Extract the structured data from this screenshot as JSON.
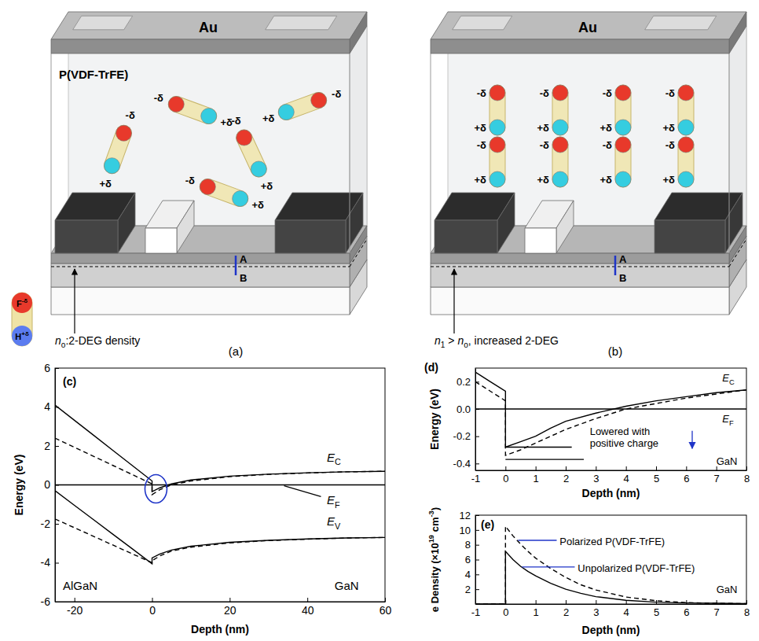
{
  "diagrams": [
    {
      "panel_label": "(a)",
      "top_electrode": "Au",
      "ferroelectric": "P(VDF-TrFE)",
      "probe_labels": [
        "A",
        "B"
      ],
      "channel_label": [
        {
          "text": "n",
          "format": "italic"
        },
        {
          "text": "o",
          "format": "sub"
        },
        {
          "text": ":2-DEG density"
        }
      ],
      "molecules": [
        {
          "labels": [
            "-δ",
            "+δ"
          ]
        },
        {
          "labels": [
            "-δ",
            "+δ"
          ]
        },
        {
          "labels": [
            "-δ",
            "+δ"
          ]
        },
        {
          "labels": [
            "-δ",
            "+δ"
          ]
        },
        {
          "labels": [
            "-δ",
            "+δ"
          ]
        }
      ],
      "legend_molecule": {
        "negative": [
          {
            "text": "F"
          },
          {
            "text": "-δ",
            "format": "sup"
          }
        ],
        "positive": [
          {
            "text": "H"
          },
          {
            "text": "+δ",
            "format": "sup"
          }
        ]
      }
    },
    {
      "panel_label": "(b)",
      "top_electrode": "Au",
      "probe_labels": [
        "A",
        "B"
      ],
      "channel_label": [
        {
          "text": "n",
          "format": "italic"
        },
        {
          "text": "1",
          "format": "sub"
        },
        {
          "text": " > "
        },
        {
          "text": "n",
          "format": "italic"
        },
        {
          "text": "o",
          "format": "sub"
        },
        {
          "text": ", increased 2-DEG"
        }
      ],
      "molecules": [
        {
          "labels": [
            "-δ",
            "+δ"
          ]
        },
        {
          "labels": [
            "-δ",
            "+δ"
          ]
        },
        {
          "labels": [
            "-δ",
            "+δ"
          ]
        },
        {
          "labels": [
            "-δ",
            "+δ"
          ]
        },
        {
          "labels": [
            "-δ",
            "+δ"
          ]
        },
        {
          "labels": [
            "-δ",
            "+δ"
          ]
        },
        {
          "labels": [
            "-δ",
            "+δ"
          ]
        },
        {
          "labels": [
            "-δ",
            "+δ"
          ]
        }
      ]
    }
  ],
  "chart_data": [
    {
      "type": "line",
      "panel_label": "(c)",
      "x_label": "Depth (nm)",
      "y_label": "Energy (eV)",
      "xlim": [
        -25,
        60
      ],
      "xticks": [
        -20,
        0,
        20,
        40,
        60
      ],
      "ylim": [
        -6,
        6
      ],
      "yticks": [
        -6,
        -4,
        -2,
        0,
        2,
        4,
        6
      ],
      "series": [
        {
          "color": "#000000",
          "line_style": "solid",
          "x": [
            -25,
            -20,
            -15,
            -10,
            -5,
            0,
            0,
            2,
            5,
            10,
            20,
            30,
            40,
            50,
            60
          ],
          "values": [
            4.1,
            3.32,
            2.54,
            1.76,
            0.98,
            0.2,
            -0.35,
            -0.15,
            0.05,
            0.25,
            0.45,
            0.55,
            0.62,
            0.67,
            0.7
          ]
        },
        {
          "color": "#000000",
          "line_style": "dashed",
          "x": [
            -25,
            -20,
            -15,
            -10,
            -5,
            0,
            0,
            2,
            5,
            10,
            20,
            30,
            40,
            50,
            60
          ],
          "values": [
            2.4,
            1.93,
            1.46,
            0.99,
            0.52,
            0.05,
            -0.5,
            -0.25,
            0.0,
            0.2,
            0.42,
            0.54,
            0.61,
            0.67,
            0.7
          ]
        },
        {
          "color": "#000000",
          "line_style": "solid",
          "x": [
            -25,
            -20,
            -15,
            -10,
            -5,
            0,
            0,
            2,
            5,
            10,
            20,
            30,
            40,
            50,
            60
          ],
          "values": [
            -0.3,
            -1.05,
            -1.8,
            -2.55,
            -3.3,
            -4.05,
            -3.75,
            -3.55,
            -3.35,
            -3.15,
            -2.95,
            -2.85,
            -2.78,
            -2.73,
            -2.7
          ]
        },
        {
          "color": "#000000",
          "line_style": "dashed",
          "x": [
            -25,
            -20,
            -15,
            -10,
            -5,
            0,
            0,
            2,
            5,
            10,
            20,
            30,
            40,
            50,
            60
          ],
          "values": [
            -1.75,
            -2.2,
            -2.65,
            -3.1,
            -3.55,
            -4.0,
            -3.9,
            -3.65,
            -3.4,
            -3.2,
            -2.98,
            -2.86,
            -2.79,
            -2.73,
            -2.7
          ]
        },
        {
          "color": "#000000",
          "line_style": "solid",
          "x": [
            -25,
            60
          ],
          "values": [
            0,
            0
          ]
        }
      ],
      "annotations": [
        [
          {
            "text": "E",
            "format": "italic"
          },
          {
            "text": "C",
            "format": "sub"
          }
        ],
        [
          {
            "text": "E",
            "format": "italic"
          },
          {
            "text": "F",
            "format": "sub"
          }
        ],
        [
          {
            "text": "E",
            "format": "italic"
          },
          {
            "text": "V",
            "format": "sub"
          }
        ],
        "AlGaN",
        "GaN"
      ]
    },
    {
      "type": "line",
      "panel_label": "(d)",
      "x_label": "Depth (nm)",
      "y_label": "Energy (eV)",
      "xlim": [
        -1,
        8
      ],
      "xticks": [
        -1,
        0,
        1,
        2,
        3,
        4,
        5,
        6,
        7,
        8
      ],
      "ylim": [
        -0.45,
        0.3
      ],
      "yticks": [
        -0.4,
        -0.2,
        {
          "value": 0,
          "label": "0.0"
        },
        0.2
      ],
      "series": [
        {
          "color": "#000000",
          "line_style": "solid",
          "x": [
            -1,
            -0.5,
            0,
            0,
            0.5,
            1,
            1.5,
            2,
            3,
            4,
            5,
            6,
            7,
            8
          ],
          "values": [
            0.27,
            0.2,
            0.13,
            -0.28,
            -0.24,
            -0.2,
            -0.14,
            -0.09,
            -0.03,
            0.02,
            0.06,
            0.09,
            0.12,
            0.14
          ]
        },
        {
          "color": "#000000",
          "line_style": "dashed",
          "x": [
            -1,
            -0.5,
            0,
            0,
            0.5,
            1,
            1.5,
            2,
            3,
            4,
            5,
            6,
            7,
            8
          ],
          "values": [
            0.2,
            0.13,
            0.06,
            -0.34,
            -0.3,
            -0.25,
            -0.2,
            -0.15,
            -0.07,
            0.0,
            0.04,
            0.08,
            0.11,
            0.14
          ]
        },
        {
          "color": "#000000",
          "line_style": "solid",
          "x": [
            0,
            2.2
          ],
          "values": [
            -0.28,
            -0.28
          ]
        },
        {
          "color": "#000000",
          "line_style": "solid",
          "x": [
            0,
            2.6
          ],
          "values": [
            -0.37,
            -0.37
          ]
        },
        {
          "color": "#000000",
          "line_style": "solid",
          "x": [
            -1,
            8
          ],
          "values": [
            0,
            0
          ]
        }
      ],
      "annotations": [
        [
          {
            "text": "E",
            "format": "italic"
          },
          {
            "text": "C",
            "format": "sub"
          }
        ],
        [
          {
            "text": "E",
            "format": "italic"
          },
          {
            "text": "F",
            "format": "sub"
          }
        ],
        {
          "lines": [
            "Lowered with",
            "positive charge"
          ]
        },
        "GaN"
      ]
    },
    {
      "type": "line",
      "panel_label": "(e)",
      "x_label": "Depth (nm)",
      "y_label": [
        {
          "text": "e Density (×10"
        },
        {
          "text": "19",
          "format": "sup"
        },
        {
          "text": " cm"
        },
        {
          "text": "-3",
          "format": "sup"
        },
        {
          "text": ")"
        }
      ],
      "xlim": [
        -1,
        8
      ],
      "xticks": [
        -1,
        0,
        1,
        2,
        3,
        4,
        5,
        6,
        7,
        8
      ],
      "ylim": [
        0,
        12
      ],
      "yticks": [
        2,
        4,
        6,
        8,
        10,
        12
      ],
      "series": [
        {
          "color": "#000000",
          "line_style": "solid",
          "x": [
            -1,
            0,
            0,
            0.25,
            0.5,
            0.75,
            1,
            1.5,
            2,
            2.5,
            3,
            4,
            5,
            6,
            7,
            8
          ],
          "values": [
            0,
            0,
            7.1,
            6.0,
            5.1,
            4.4,
            3.8,
            2.8,
            2.0,
            1.45,
            1.0,
            0.5,
            0.25,
            0.15,
            0.1,
            0.05
          ]
        },
        {
          "color": "#000000",
          "line_style": "dashed",
          "x": [
            -1,
            0,
            0,
            0.25,
            0.5,
            0.75,
            1,
            1.5,
            2,
            2.5,
            3,
            4,
            5,
            6,
            7,
            8
          ],
          "values": [
            0,
            0,
            10.5,
            9.2,
            8.1,
            7.1,
            6.2,
            4.8,
            3.6,
            2.6,
            1.9,
            0.95,
            0.45,
            0.2,
            0.1,
            0.05
          ]
        }
      ],
      "annotations": [
        "Polarized P(VDF-TrFE)",
        "Unpolarized P(VDF-TrFE)",
        "GaN"
      ]
    }
  ]
}
